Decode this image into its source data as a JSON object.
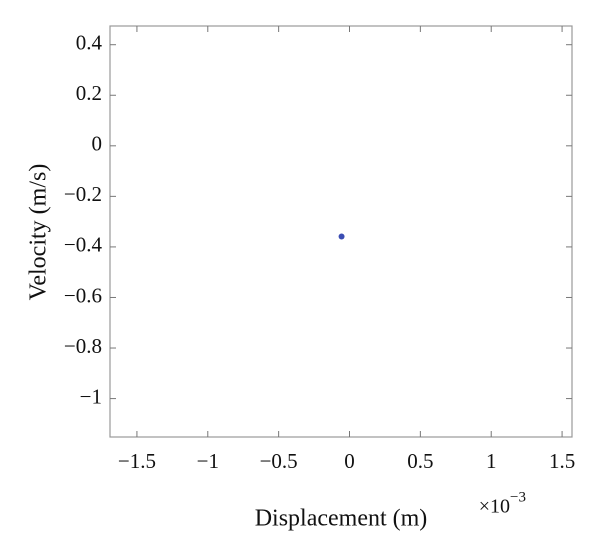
{
  "chart_data": {
    "type": "scatter",
    "x_label": "Displacement (m)",
    "y_label": "Velocity (m/s)",
    "x_offset_label": {
      "base": "×10",
      "exponent": "−3"
    },
    "x": [
      -0.056
    ],
    "values": [
      -0.359
    ],
    "color": "#3b4db3",
    "xlim": [
      -1.69,
      1.57
    ],
    "xticks": [
      {
        "value": -1.5,
        "label": "−1.5"
      },
      {
        "value": -1,
        "label": "−1"
      },
      {
        "value": -0.5,
        "label": "−0.5"
      },
      0,
      0.5,
      1,
      1.5
    ],
    "ylim": [
      -1.152,
      0.474
    ],
    "yticks": [
      0.4,
      0.2,
      0,
      {
        "value": -0.2,
        "label": "−0.2"
      },
      {
        "value": -0.4,
        "label": "−0.4"
      },
      {
        "value": -0.6,
        "label": "−0.6"
      },
      {
        "value": -0.8,
        "label": "−0.8"
      },
      {
        "value": -1,
        "label": "−1"
      }
    ],
    "grid": false
  }
}
